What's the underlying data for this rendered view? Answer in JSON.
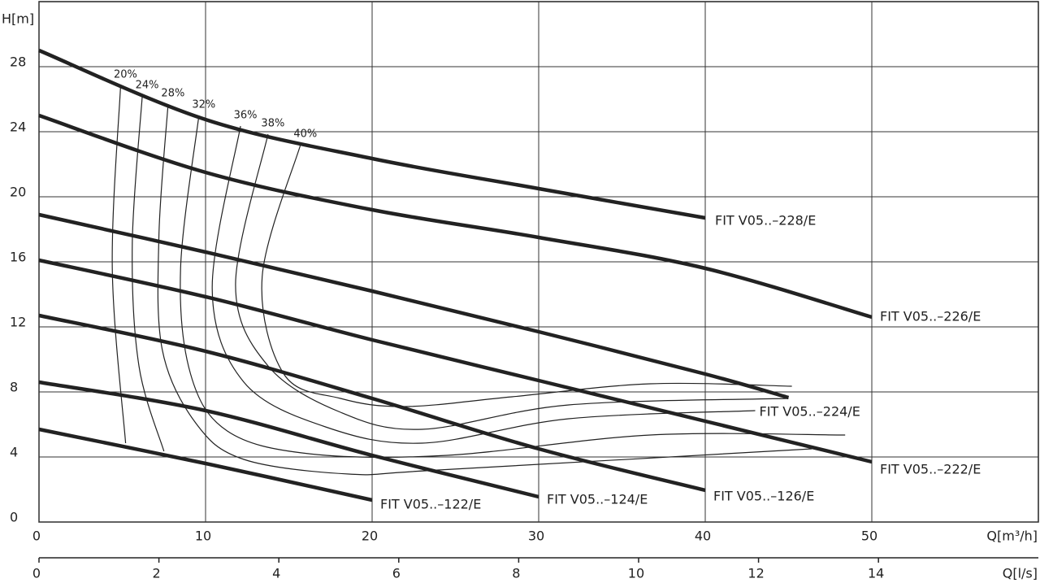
{
  "chart_data": {
    "type": "line",
    "y_label": "H[m]",
    "x_label": "Q[m³/h]",
    "x2_label": "Q[l/s]",
    "xlim": [
      0,
      60
    ],
    "xticks": [
      0,
      10,
      20,
      30,
      40,
      50
    ],
    "x2lim": [
      0,
      16.667
    ],
    "x2ticks": [
      0,
      2,
      4,
      6,
      8,
      10,
      12,
      14
    ],
    "ylim": [
      0,
      32
    ],
    "yticks": [
      0,
      4,
      8,
      12,
      16,
      20,
      24,
      28
    ],
    "grid": true,
    "series": [
      {
        "name": "FIT V05..–228/E",
        "color": "#222222",
        "x": [
          0,
          10,
          20,
          30,
          40
        ],
        "values": [
          29,
          24.75,
          22.35,
          20.5,
          18.7
        ]
      },
      {
        "name": "FIT V05..–226/E",
        "color": "#222222",
        "x": [
          0,
          10,
          20,
          30,
          40,
          50
        ],
        "values": [
          25,
          21.5,
          19.2,
          17.5,
          15.6,
          12.6
        ]
      },
      {
        "name": "FIT V05..–224/E",
        "color": "#222222",
        "x": [
          0,
          10,
          20,
          30,
          40,
          45
        ],
        "values": [
          18.9,
          16.6,
          14.2,
          11.7,
          9.1,
          7.65
        ]
      },
      {
        "name": "FIT V05..–222/E",
        "color": "#222222",
        "x": [
          0,
          10,
          20,
          30,
          40,
          50
        ],
        "values": [
          16.1,
          13.85,
          11.2,
          8.7,
          6.2,
          3.7
        ]
      },
      {
        "name": "FIT V05..–126/E",
        "color": "#222222",
        "x": [
          0,
          10,
          20,
          30,
          40
        ],
        "values": [
          12.7,
          10.5,
          7.6,
          4.5,
          1.95
        ]
      },
      {
        "name": "FIT V05..–124/E",
        "color": "#222222",
        "x": [
          0,
          10,
          20,
          30
        ],
        "values": [
          8.6,
          6.85,
          4.1,
          1.55
        ]
      },
      {
        "name": "FIT V05..–122/E",
        "color": "#222222",
        "x": [
          0,
          10,
          20
        ],
        "values": [
          5.7,
          3.6,
          1.35
        ]
      }
    ],
    "efficiency": [
      {
        "name": "20%",
        "x": [
          4.9,
          4.4,
          5.2
        ],
        "values": [
          26.85,
          15.6,
          4.85
        ]
      },
      {
        "name": "24%",
        "x": [
          6.2,
          5.6,
          6.0,
          7.5
        ],
        "values": [
          26.2,
          17.1,
          9.6,
          4.35
        ]
      },
      {
        "name": "28%",
        "x": [
          7.75,
          7.2,
          7.4,
          9.4,
          12.3,
          18.6,
          24,
          46.4
        ],
        "values": [
          25.7,
          17.6,
          10.6,
          6.1,
          3.85,
          2.95,
          3.2,
          4.5
        ]
      },
      {
        "name": "32%",
        "x": [
          9.6,
          8.5,
          9.1,
          11.3,
          16.2,
          24.5,
          36.7,
          48.4
        ],
        "values": [
          25,
          15.6,
          9.1,
          5.6,
          4.2,
          4.1,
          5.35,
          5.35
        ]
      },
      {
        "name": "36%",
        "x": [
          12.1,
          10.4,
          12.3,
          17.2,
          23,
          31.8,
          43
        ],
        "values": [
          24.35,
          14.35,
          8.6,
          5.85,
          4.85,
          6.35,
          6.85
        ]
      },
      {
        "name": "38%",
        "x": [
          13.75,
          11.8,
          13.75,
          18.1,
          23,
          31.8,
          45
        ],
        "values": [
          23.85,
          14.6,
          9.6,
          6.75,
          5.7,
          7.2,
          7.6
        ]
      },
      {
        "name": "40%",
        "x": [
          15.7,
          13.4,
          14.7,
          18.1,
          22,
          28.4,
          36.7,
          45.2
        ],
        "values": [
          23.2,
          15.1,
          9.1,
          7.6,
          7.1,
          7.7,
          8.5,
          8.35
        ]
      }
    ]
  }
}
